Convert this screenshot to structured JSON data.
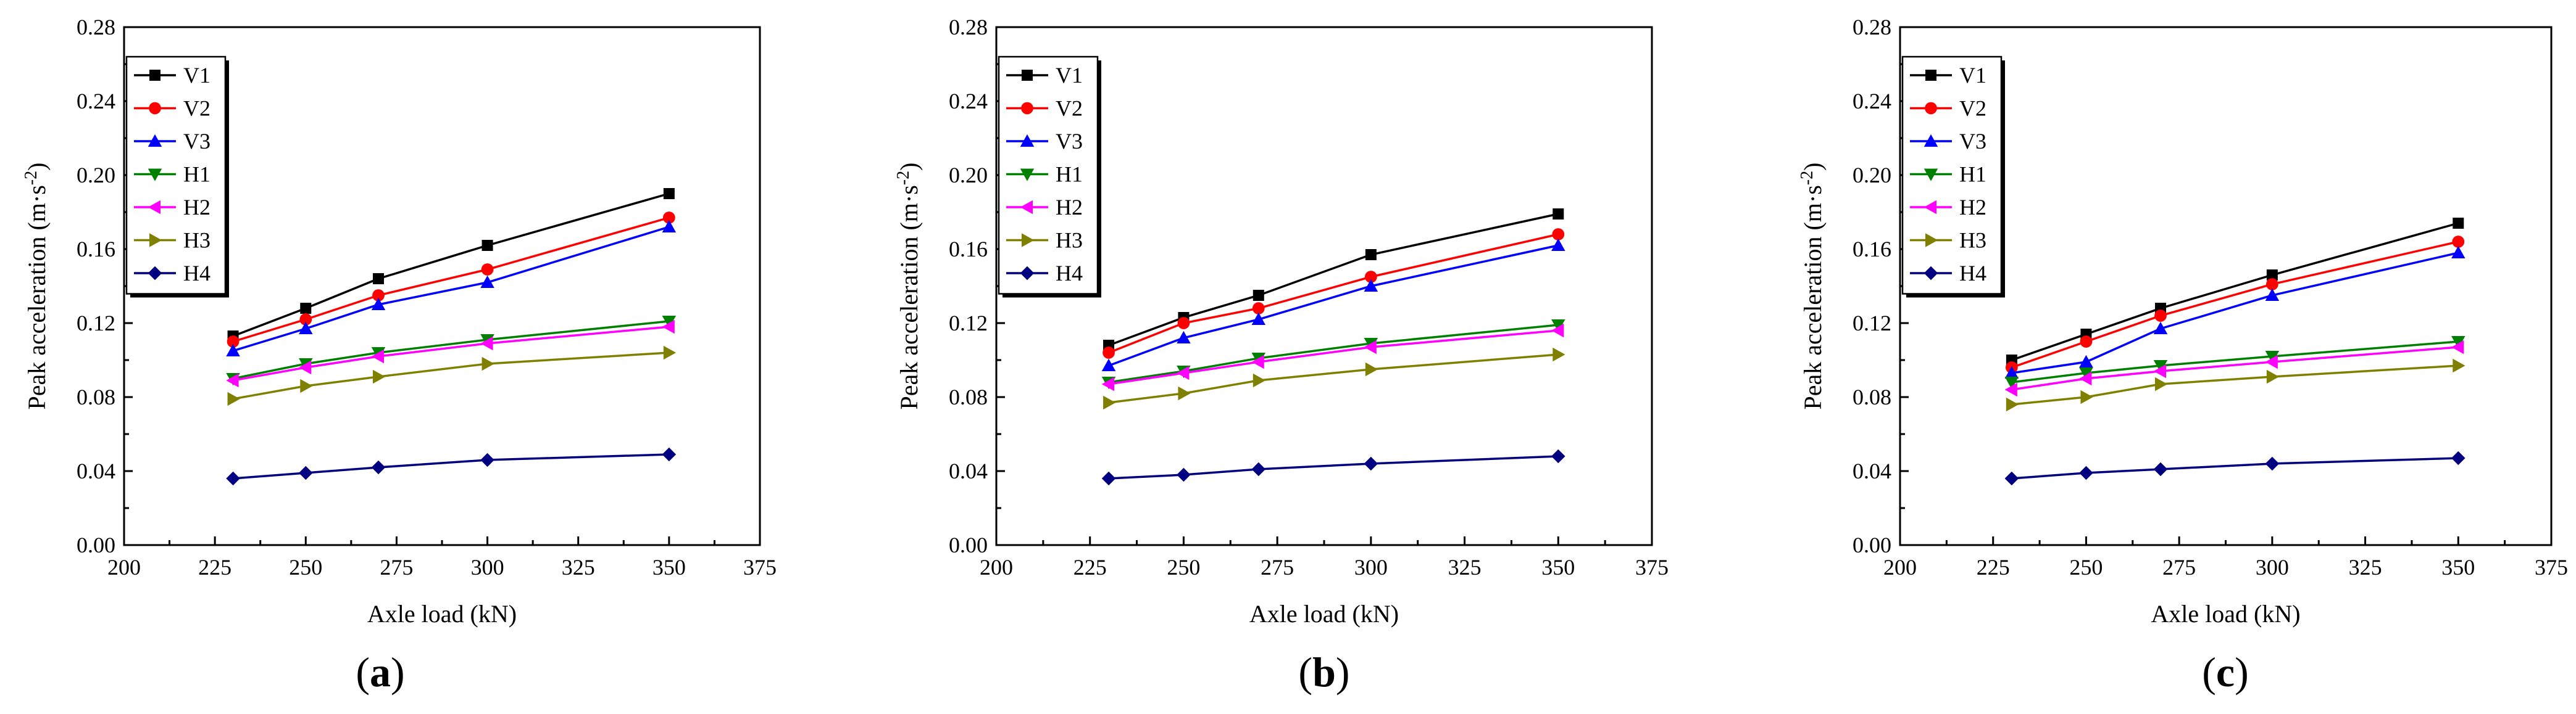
{
  "figure": {
    "series_colors": {
      "V1": "#000000",
      "V2": "#ff0000",
      "V3": "#0000ff",
      "H1": "#008000",
      "H2": "#ff00ff",
      "H3": "#808000",
      "H4": "#000080"
    },
    "series_markers": {
      "V1": "square",
      "V2": "circle",
      "V3": "triangle-up",
      "H1": "triangle-down",
      "H2": "triangle-left",
      "H3": "triangle-right",
      "H4": "diamond"
    }
  },
  "chart_data": [
    {
      "type": "line",
      "panel_label": "(a)",
      "title": "",
      "xlabel": "Axle load (kN)",
      "ylabel_main": "Peak acceleration (m·s",
      "ylabel_sup": "-2",
      "ylabel_tail": ")",
      "xlim": [
        200,
        375
      ],
      "ylim": [
        0.0,
        0.28
      ],
      "xticks": [
        "200",
        "225",
        "250",
        "275",
        "300",
        "325",
        "350",
        "375"
      ],
      "yticks": [
        "0.00",
        "0.04",
        "0.08",
        "0.12",
        "0.16",
        "0.20",
        "0.24",
        "0.28"
      ],
      "legend_position": "top-left",
      "grid": false,
      "x": [
        230,
        250,
        270,
        300,
        350
      ],
      "series": [
        {
          "name": "V1",
          "values": [
            0.113,
            0.128,
            0.144,
            0.162,
            0.19
          ]
        },
        {
          "name": "V2",
          "values": [
            0.11,
            0.122,
            0.135,
            0.149,
            0.177
          ]
        },
        {
          "name": "V3",
          "values": [
            0.105,
            0.117,
            0.13,
            0.142,
            0.172
          ]
        },
        {
          "name": "H1",
          "values": [
            0.09,
            0.098,
            0.104,
            0.111,
            0.121
          ]
        },
        {
          "name": "H2",
          "values": [
            0.089,
            0.096,
            0.102,
            0.109,
            0.118
          ]
        },
        {
          "name": "H3",
          "values": [
            0.079,
            0.086,
            0.091,
            0.098,
            0.104
          ]
        },
        {
          "name": "H4",
          "values": [
            0.036,
            0.039,
            0.042,
            0.046,
            0.049
          ]
        }
      ]
    },
    {
      "type": "line",
      "panel_label": "(b)",
      "title": "",
      "xlabel": "Axle load (kN)",
      "ylabel_main": "Peak acceleration (m·s",
      "ylabel_sup": "-2",
      "ylabel_tail": ")",
      "xlim": [
        200,
        375
      ],
      "ylim": [
        0.0,
        0.28
      ],
      "xticks": [
        "200",
        "225",
        "250",
        "275",
        "300",
        "325",
        "350",
        "375"
      ],
      "yticks": [
        "0.00",
        "0.04",
        "0.08",
        "0.12",
        "0.16",
        "0.20",
        "0.24",
        "0.28"
      ],
      "legend_position": "top-left",
      "grid": false,
      "x": [
        230,
        250,
        270,
        300,
        350
      ],
      "series": [
        {
          "name": "V1",
          "values": [
            0.108,
            0.123,
            0.135,
            0.157,
            0.179
          ]
        },
        {
          "name": "V2",
          "values": [
            0.104,
            0.12,
            0.128,
            0.145,
            0.168
          ]
        },
        {
          "name": "V3",
          "values": [
            0.097,
            0.112,
            0.122,
            0.14,
            0.162
          ]
        },
        {
          "name": "H1",
          "values": [
            0.088,
            0.094,
            0.101,
            0.109,
            0.119
          ]
        },
        {
          "name": "H2",
          "values": [
            0.087,
            0.093,
            0.099,
            0.107,
            0.116
          ]
        },
        {
          "name": "H3",
          "values": [
            0.077,
            0.082,
            0.089,
            0.095,
            0.103
          ]
        },
        {
          "name": "H4",
          "values": [
            0.036,
            0.038,
            0.041,
            0.044,
            0.048
          ]
        }
      ]
    },
    {
      "type": "line",
      "panel_label": "(c)",
      "title": "",
      "xlabel": "Axle load (kN)",
      "ylabel_main": "Peak acceleration (m·s",
      "ylabel_sup": "-2",
      "ylabel_tail": ")",
      "xlim": [
        200,
        375
      ],
      "ylim": [
        0.0,
        0.28
      ],
      "xticks": [
        "200",
        "225",
        "250",
        "275",
        "300",
        "325",
        "350",
        "375"
      ],
      "yticks": [
        "0.00",
        "0.04",
        "0.08",
        "0.12",
        "0.16",
        "0.20",
        "0.24",
        "0.28"
      ],
      "legend_position": "top-left",
      "grid": false,
      "x": [
        230,
        250,
        270,
        300,
        350
      ],
      "series": [
        {
          "name": "V1",
          "values": [
            0.1,
            0.114,
            0.128,
            0.146,
            0.174
          ]
        },
        {
          "name": "V2",
          "values": [
            0.096,
            0.11,
            0.124,
            0.141,
            0.164
          ]
        },
        {
          "name": "V3",
          "values": [
            0.093,
            0.099,
            0.117,
            0.135,
            0.158
          ]
        },
        {
          "name": "H1",
          "values": [
            0.088,
            0.093,
            0.097,
            0.102,
            0.11
          ]
        },
        {
          "name": "H2",
          "values": [
            0.084,
            0.09,
            0.094,
            0.099,
            0.107
          ]
        },
        {
          "name": "H3",
          "values": [
            0.076,
            0.08,
            0.087,
            0.091,
            0.097
          ]
        },
        {
          "name": "H4",
          "values": [
            0.036,
            0.039,
            0.041,
            0.044,
            0.047
          ]
        }
      ]
    }
  ]
}
